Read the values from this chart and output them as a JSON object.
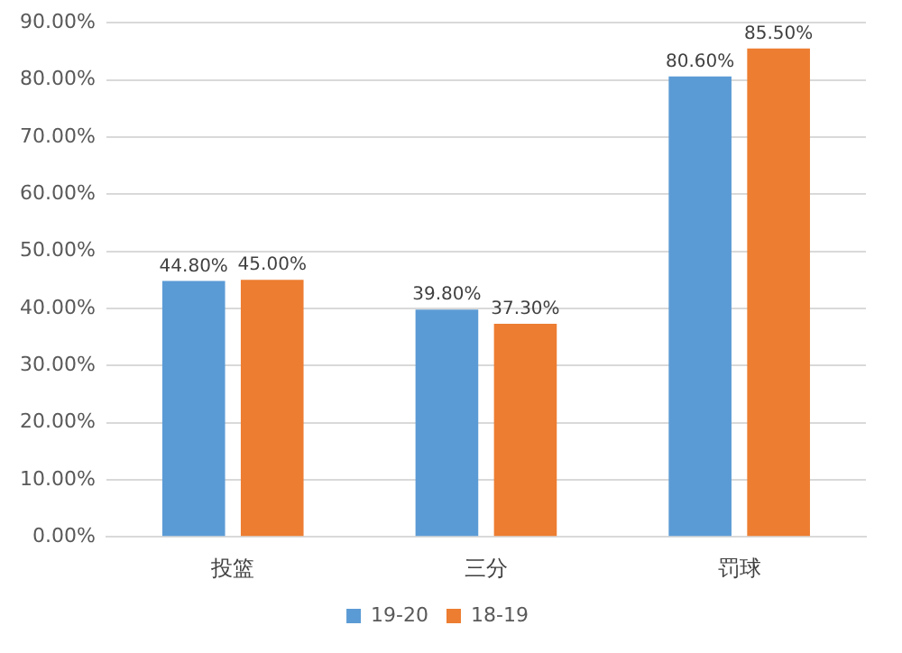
{
  "chart_data": {
    "type": "bar",
    "categories": [
      "投篮",
      "三分",
      "罚球"
    ],
    "series": [
      {
        "name": "19-20",
        "color": "#5b9bd5",
        "values": [
          44.8,
          39.8,
          80.6
        ],
        "value_labels": [
          "44.80%",
          "39.80%",
          "80.60%"
        ]
      },
      {
        "name": "18-19",
        "color": "#ed7d31",
        "values": [
          45.0,
          37.3,
          85.5
        ],
        "value_labels": [
          "45.00%",
          "37.30%",
          "85.50%"
        ]
      }
    ],
    "ylim": [
      0,
      90
    ],
    "yticks": [
      {
        "value": 0,
        "label": "0.00%"
      },
      {
        "value": 10,
        "label": "10.00%"
      },
      {
        "value": 20,
        "label": "20.00%"
      },
      {
        "value": 30,
        "label": "30.00%"
      },
      {
        "value": 40,
        "label": "40.00%"
      },
      {
        "value": 50,
        "label": "50.00%"
      },
      {
        "value": 60,
        "label": "60.00%"
      },
      {
        "value": 70,
        "label": "70.00%"
      },
      {
        "value": 80,
        "label": "80.00%"
      },
      {
        "value": 90,
        "label": "90.00%"
      }
    ],
    "grid": "y",
    "legend": "bottom"
  }
}
